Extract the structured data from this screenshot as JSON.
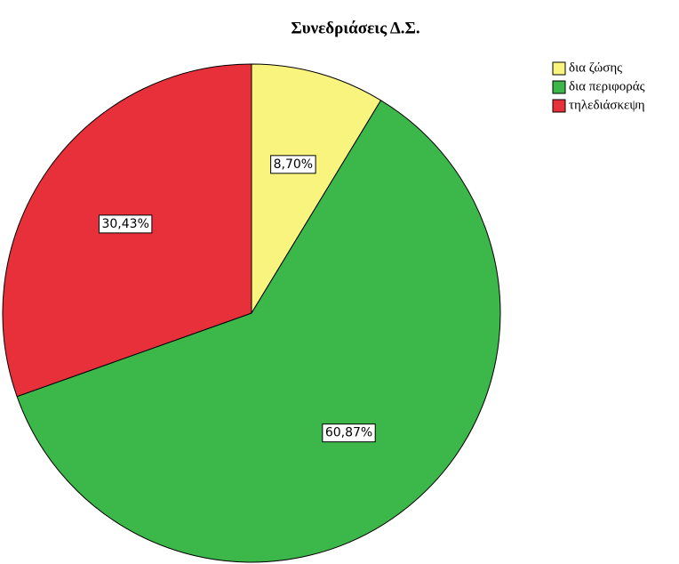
{
  "chart_data": {
    "type": "pie",
    "title": "Συνεδριάσεις Δ.Σ.",
    "categories": [
      "δια ζώσης",
      "δια περιφοράς",
      "τηλεδιάσκεψη"
    ],
    "values": [
      8.7,
      60.87,
      30.43
    ],
    "value_labels": [
      "8,70%",
      "60,87%",
      "30,43%"
    ],
    "colors": [
      "#f9f47d",
      "#3cb74a",
      "#e8303a"
    ],
    "legend": "top-right"
  }
}
